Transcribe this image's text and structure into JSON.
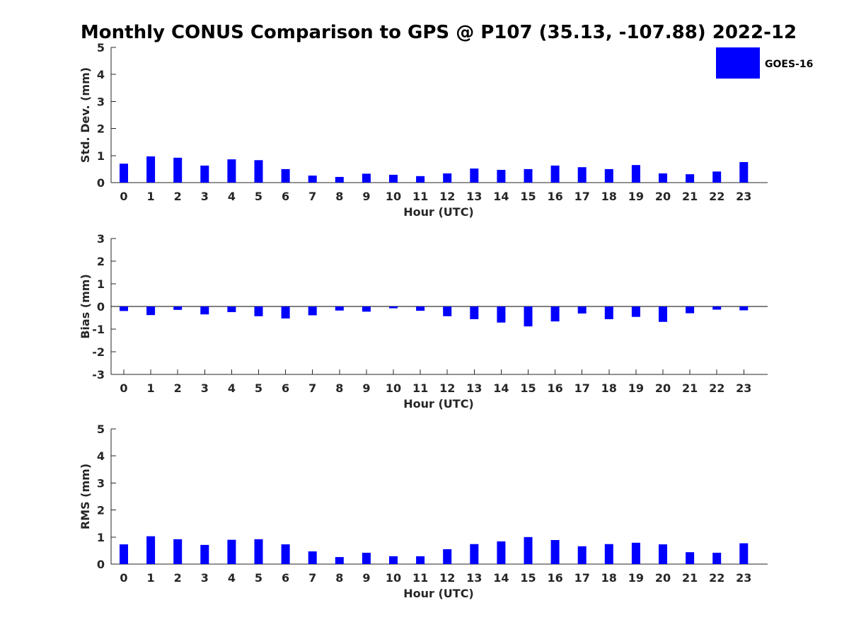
{
  "chart_data": {
    "title": "Monthly CONUS Comparison to GPS @ P107 (35.13, -107.88) 2022-12",
    "type": "bar",
    "categories": [
      "0",
      "1",
      "2",
      "3",
      "4",
      "5",
      "6",
      "7",
      "8",
      "9",
      "10",
      "11",
      "12",
      "13",
      "14",
      "15",
      "16",
      "17",
      "18",
      "19",
      "20",
      "21",
      "22",
      "23"
    ],
    "legend": {
      "label": "GOES-16",
      "color": "#0000ff",
      "position": "top-right"
    },
    "bar_color": "#0000ff",
    "panels": [
      {
        "name": "std-dev",
        "ylabel": "Std. Dev. (mm)",
        "xlabel": "Hour (UTC)",
        "ylim": [
          0,
          5
        ],
        "yticks": [
          0,
          1,
          2,
          3,
          4,
          5
        ],
        "values": [
          0.7,
          0.97,
          0.92,
          0.63,
          0.86,
          0.83,
          0.5,
          0.26,
          0.21,
          0.33,
          0.29,
          0.24,
          0.34,
          0.52,
          0.47,
          0.5,
          0.63,
          0.57,
          0.5,
          0.65,
          0.34,
          0.31,
          0.41,
          0.76
        ]
      },
      {
        "name": "bias",
        "ylabel": "Bias (mm)",
        "xlabel": "Hour (UTC)",
        "ylim": [
          -3,
          3
        ],
        "yticks": [
          -3,
          -2,
          -1,
          0,
          1,
          2,
          3
        ],
        "values": [
          -0.2,
          -0.38,
          -0.15,
          -0.35,
          -0.25,
          -0.43,
          -0.53,
          -0.39,
          -0.18,
          -0.23,
          -0.08,
          -0.19,
          -0.43,
          -0.56,
          -0.71,
          -0.88,
          -0.66,
          -0.31,
          -0.56,
          -0.46,
          -0.68,
          -0.3,
          -0.14,
          -0.17
        ]
      },
      {
        "name": "rms",
        "ylabel": "RMS (mm)",
        "xlabel": "Hour (UTC)",
        "ylim": [
          0,
          5
        ],
        "yticks": [
          0,
          1,
          2,
          3,
          4,
          5
        ],
        "values": [
          0.73,
          1.03,
          0.92,
          0.71,
          0.9,
          0.92,
          0.73,
          0.47,
          0.26,
          0.42,
          0.29,
          0.29,
          0.55,
          0.74,
          0.84,
          1.0,
          0.89,
          0.66,
          0.74,
          0.79,
          0.73,
          0.44,
          0.42,
          0.77
        ]
      }
    ]
  }
}
